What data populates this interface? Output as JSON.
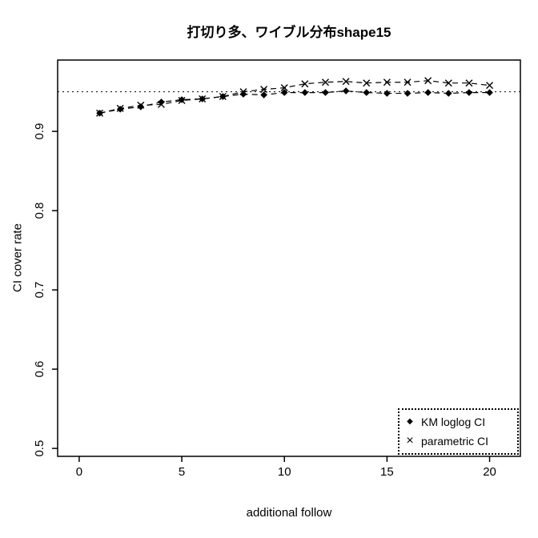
{
  "chart_data": {
    "type": "line",
    "title": "打切り多、ワイブル分布shape15",
    "xlabel": "additional follow",
    "ylabel": "CI cover rate",
    "xlim": [
      -1.05,
      21.5
    ],
    "ylim": [
      0.49,
      0.99
    ],
    "x_tick_labels": [
      "0",
      "5",
      "10",
      "15",
      "20"
    ],
    "x_tick_values": [
      0,
      5,
      10,
      15,
      20
    ],
    "y_tick_labels": [
      "0.5",
      "0.6",
      "0.7",
      "0.8",
      "0.9"
    ],
    "y_tick_values": [
      0.5,
      0.6,
      0.7,
      0.8,
      0.9
    ],
    "reference_line": {
      "y": 0.95,
      "style": "dotted"
    },
    "grid": false,
    "legend": {
      "position": "bottom-right",
      "border": "dotted"
    },
    "colors": {
      "foreground": "#000000",
      "background": "#ffffff"
    },
    "x": [
      1,
      2,
      3,
      4,
      5,
      6,
      7,
      8,
      9,
      10,
      11,
      12,
      13,
      14,
      15,
      16,
      17,
      18,
      19,
      20
    ],
    "series": [
      {
        "name": "KM loglog CI",
        "marker": "diamond",
        "linestyle": "dashed",
        "values": [
          0.923,
          0.928,
          0.931,
          0.937,
          0.94,
          0.941,
          0.944,
          0.947,
          0.946,
          0.949,
          0.949,
          0.949,
          0.951,
          0.949,
          0.948,
          0.948,
          0.949,
          0.948,
          0.949,
          0.949
        ]
      },
      {
        "name": "parametric CI",
        "marker": "x",
        "linestyle": "dashed",
        "values": [
          0.923,
          0.929,
          0.933,
          0.934,
          0.939,
          0.941,
          0.944,
          0.95,
          0.953,
          0.955,
          0.96,
          0.962,
          0.963,
          0.961,
          0.962,
          0.962,
          0.964,
          0.961,
          0.961,
          0.958
        ]
      }
    ]
  }
}
